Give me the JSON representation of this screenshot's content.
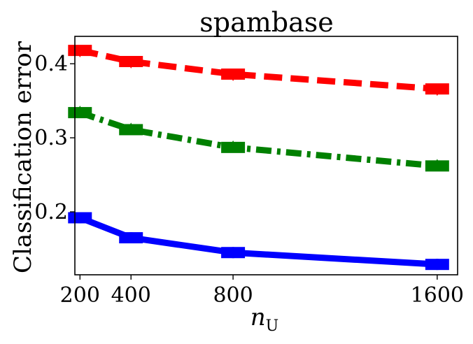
{
  "chart_data": {
    "type": "line",
    "title": "spambase",
    "xlabel": "n",
    "xlabel_subscript": "U",
    "ylabel": "Classification error",
    "x": [
      200,
      400,
      800,
      1600
    ],
    "xticks": [
      "200",
      "400",
      "800",
      "1600"
    ],
    "yticks": [
      "0.2",
      "0.3",
      "0.4"
    ],
    "xlim": [
      180,
      1680
    ],
    "ylim": [
      0.115,
      0.437
    ],
    "grid": false,
    "legend": false,
    "series": [
      {
        "color": "#ff0000",
        "linestyle": "dashed",
        "marker": "triangle-down",
        "values": [
          0.418,
          0.403,
          0.386,
          0.366
        ]
      },
      {
        "color": "#008000",
        "linestyle": "dashdot",
        "marker": "triangle-up",
        "values": [
          0.334,
          0.311,
          0.287,
          0.262
        ]
      },
      {
        "color": "#0000ff",
        "linestyle": "solid",
        "marker": "circle",
        "values": [
          0.192,
          0.165,
          0.145,
          0.129
        ]
      }
    ]
  }
}
